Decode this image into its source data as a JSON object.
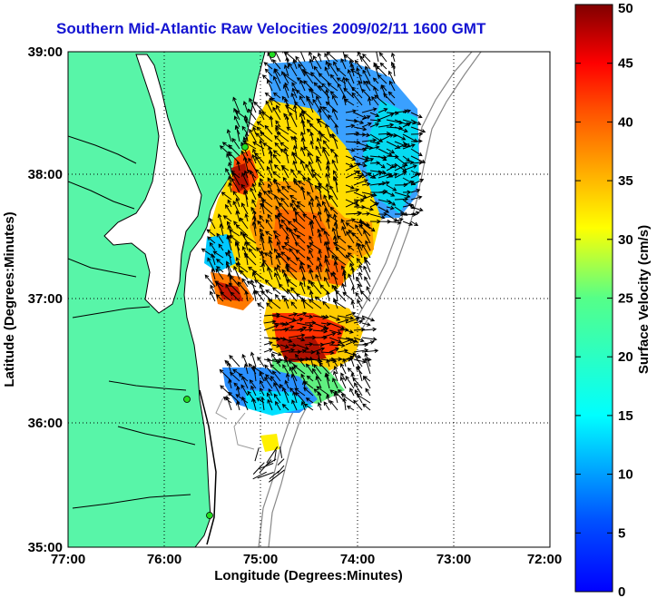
{
  "title": "Southern Mid-Atlantic Raw Velocities 2009/02/11 1600 GMT",
  "axes": {
    "xlabel": "Longitude (Degrees:Minutes)",
    "ylabel": "Latitude (Degrees:Minutes)",
    "x_ticks": [
      "77:00",
      "76:00",
      "75:00",
      "74:00",
      "73:00",
      "72:00"
    ],
    "y_ticks": [
      "39:00",
      "38:00",
      "37:00",
      "36:00",
      "35:00"
    ],
    "x_range_deg_west": [
      77,
      72
    ],
    "y_range_deg_north": [
      35,
      39
    ],
    "grid": "dotted"
  },
  "colorbar": {
    "label": "Surface Velocity (cm/s)",
    "ticks": [
      "50",
      "45",
      "40",
      "35",
      "30",
      "25",
      "20",
      "15",
      "10",
      "5",
      "0"
    ],
    "range": [
      0,
      50
    ],
    "colormap": "jet"
  },
  "colors": {
    "land": "#58f5a8",
    "title": "#1414d2",
    "station": "#22dd22"
  }
}
